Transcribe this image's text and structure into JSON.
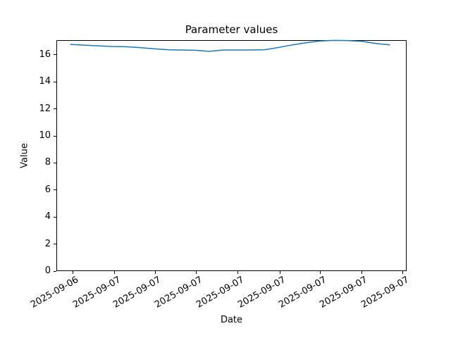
{
  "chart_data": {
    "type": "line",
    "title": "Parameter values",
    "xlabel": "Date",
    "ylabel": "Value",
    "grid": false,
    "legend": null,
    "background_color": "#ffffff",
    "axis_color": "#000000",
    "ylim": [
      0,
      17.09
    ],
    "yticks": [
      0,
      2,
      4,
      6,
      8,
      10,
      12,
      14,
      16
    ],
    "xlim": [
      -1.02,
      24.22
    ],
    "xticks": [
      {
        "pos": 0.15,
        "label": "2025-09-06"
      },
      {
        "pos": 3.15,
        "label": "2025-09-07"
      },
      {
        "pos": 6.09,
        "label": "2025-09-07"
      },
      {
        "pos": 9.04,
        "label": "2025-09-07"
      },
      {
        "pos": 12.08,
        "label": "2025-09-07"
      },
      {
        "pos": 15.08,
        "label": "2025-09-07"
      },
      {
        "pos": 18.02,
        "label": "2025-09-07"
      },
      {
        "pos": 20.97,
        "label": "2025-09-07"
      },
      {
        "pos": 23.96,
        "label": "2025-09-07"
      }
    ],
    "series": [
      {
        "name": "parameter-values",
        "color": "#1f77b4",
        "x": [
          0,
          1,
          2,
          3,
          4,
          5,
          6,
          7,
          8,
          9,
          10,
          11,
          12,
          13,
          14,
          15,
          16,
          17,
          18,
          19,
          20,
          21,
          22,
          23
        ],
        "values": [
          16.77,
          16.72,
          16.67,
          16.62,
          16.6,
          16.54,
          16.45,
          16.38,
          16.36,
          16.34,
          16.26,
          16.36,
          16.36,
          16.36,
          16.38,
          16.55,
          16.74,
          16.9,
          17.03,
          17.07,
          17.06,
          17.0,
          16.84,
          16.74
        ]
      }
    ]
  }
}
